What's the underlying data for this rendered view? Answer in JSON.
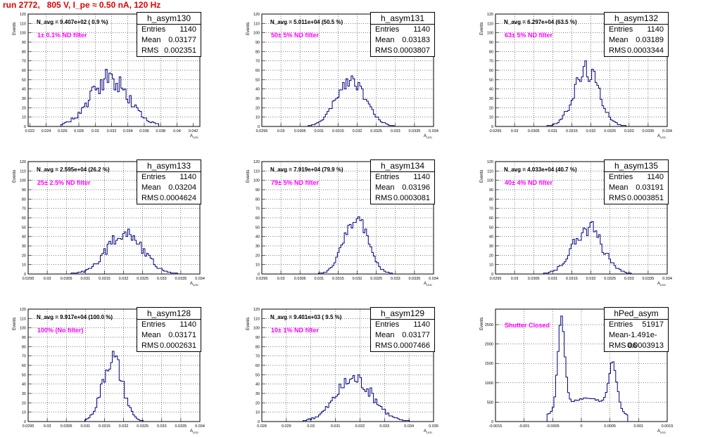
{
  "title": "run 2772,   805 V, I_pe ≈ 0.50 nA, 120 Hz",
  "colors": {
    "line": "#000080",
    "note": "#ff00ff",
    "title": "#e00000"
  },
  "chart_data": [
    {
      "type": "histogram",
      "name": "h_asym130",
      "stats": {
        "entries": "1140",
        "mean": "0.03177",
        "rms": "0.002351"
      },
      "n_avg": "N_avg = 9.407e+02 ( 0.9 %)",
      "note": "1± 0.1% ND filter",
      "ylabel": "Events",
      "xlabel": "A",
      "xlabel_sub": "LED",
      "xlim": [
        0.0218,
        0.0428
      ],
      "ylim": [
        0,
        120
      ],
      "xticks": [
        0.022,
        0.024,
        0.026,
        0.028,
        0.03,
        0.032,
        0.034,
        0.036,
        0.038,
        0.04,
        0.042
      ],
      "xtick_labels": [
        "0.022",
        "0.024",
        "0.026",
        "0.028",
        "0.03",
        "0.032",
        "0.034",
        "0.036",
        "0.038",
        "0.04",
        "0.042"
      ],
      "yticks": [
        0,
        10,
        20,
        30,
        40,
        50,
        60,
        70,
        80,
        90,
        100,
        110,
        120
      ],
      "profile": {
        "mean": 0.03177,
        "sigma": 0.002351,
        "peak": 50,
        "noise": 0.25,
        "seed": 130,
        "xmin": 0.0258,
        "xmax": 0.0378
      }
    },
    {
      "type": "histogram",
      "name": "h_asym131",
      "stats": {
        "entries": "1140",
        "mean": "0.03183",
        "rms": "0.0003807"
      },
      "n_avg": "N_avg = 5.011e+04 (50.5 %)",
      "note": "50± 5% ND filter",
      "ylabel": "Events",
      "xlabel": "A",
      "xlabel_sub": "LED",
      "xlim": [
        0.0295,
        0.034
      ],
      "ylim": [
        0,
        120
      ],
      "xticks": [
        0.0295,
        0.03,
        0.0305,
        0.031,
        0.0315,
        0.032,
        0.0325,
        0.033,
        0.0335,
        0.034
      ],
      "xtick_labels": [
        "0.0295",
        "0.03",
        "0.0305",
        "0.031",
        "0.0315",
        "0.032",
        "0.0325",
        "0.033",
        "0.0335",
        "0.034"
      ],
      "yticks": [
        0,
        10,
        20,
        30,
        40,
        50,
        60,
        70,
        80,
        90,
        100,
        110,
        120
      ],
      "profile": {
        "mean": 0.03183,
        "sigma": 0.00038,
        "peak": 50,
        "noise": 0.15,
        "seed": 131,
        "xmin": 0.0307,
        "xmax": 0.0331
      }
    },
    {
      "type": "histogram",
      "name": "h_asym132",
      "stats": {
        "entries": "1140",
        "mean": "0.03189",
        "rms": "0.0003344"
      },
      "n_avg": "N_avg = 6.297e+04 (63.5 %)",
      "note": "63± 5% ND filter",
      "ylabel": "Events",
      "xlabel": "A",
      "xlabel_sub": "LED",
      "xlim": [
        0.0295,
        0.034
      ],
      "ylim": [
        0,
        120
      ],
      "xticks": [
        0.0295,
        0.03,
        0.0305,
        0.031,
        0.0315,
        0.032,
        0.0325,
        0.033,
        0.0335,
        0.034
      ],
      "xtick_labels": [
        "0.0295",
        "0.03",
        "0.0305",
        "0.031",
        "0.0315",
        "0.032",
        "0.0325",
        "0.033",
        "0.0335",
        "0.034"
      ],
      "yticks": [
        0,
        10,
        20,
        30,
        40,
        50,
        60,
        70,
        80,
        90,
        100,
        110,
        120
      ],
      "profile": {
        "mean": 0.03189,
        "sigma": 0.00033,
        "peak": 60,
        "noise": 0.2,
        "seed": 132,
        "xmin": 0.0307,
        "xmax": 0.033
      }
    },
    {
      "type": "histogram",
      "name": "h_asym133",
      "stats": {
        "entries": "1140",
        "mean": "0.03204",
        "rms": "0.0004624"
      },
      "n_avg": "N_avg = 2.595e+04 (26.2 %)",
      "note": "25± 2.5% ND filter",
      "ylabel": "Events",
      "xlabel": "A",
      "xlabel_sub": "LED",
      "xlim": [
        0.0295,
        0.034
      ],
      "ylim": [
        0,
        120
      ],
      "xticks": [
        0.0295,
        0.03,
        0.0305,
        0.031,
        0.0315,
        0.032,
        0.0325,
        0.033,
        0.0335,
        0.034
      ],
      "xtick_labels": [
        "0.0295",
        "0.03",
        "0.0305",
        "0.031",
        "0.0315",
        "0.032",
        "0.0325",
        "0.033",
        "0.0335",
        "0.034"
      ],
      "yticks": [
        0,
        10,
        20,
        30,
        40,
        50,
        60,
        70,
        80,
        90,
        100,
        110,
        120
      ],
      "profile": {
        "mean": 0.03204,
        "sigma": 0.00046,
        "peak": 45,
        "noise": 0.2,
        "seed": 133,
        "xmin": 0.0304,
        "xmax": 0.0335
      }
    },
    {
      "type": "histogram",
      "name": "h_asym134",
      "stats": {
        "entries": "1140",
        "mean": "0.03196",
        "rms": "0.0003081"
      },
      "n_avg": "N_avg = 7.919e+04 (79.9 %)",
      "note": "79± 5% ND filter",
      "ylabel": "Events",
      "xlabel": "A",
      "xlabel_sub": "LED",
      "xlim": [
        0.0295,
        0.034
      ],
      "ylim": [
        0,
        120
      ],
      "xticks": [
        0.0295,
        0.03,
        0.0305,
        0.031,
        0.0315,
        0.032,
        0.0325,
        0.033,
        0.0335,
        0.034
      ],
      "xtick_labels": [
        "0.0295",
        "0.03",
        "0.0305",
        "0.031",
        "0.0315",
        "0.032",
        "0.0325",
        "0.033",
        "0.0335",
        "0.034"
      ],
      "yticks": [
        0,
        10,
        20,
        30,
        40,
        50,
        60,
        70,
        80,
        90,
        100,
        110,
        120
      ],
      "profile": {
        "mean": 0.03196,
        "sigma": 0.00031,
        "peak": 60,
        "noise": 0.15,
        "seed": 134,
        "xmin": 0.0308,
        "xmax": 0.0331
      }
    },
    {
      "type": "histogram",
      "name": "h_asym135",
      "stats": {
        "entries": "1140",
        "mean": "0.03191",
        "rms": "0.0003851"
      },
      "n_avg": "N_avg = 4.033e+04 (40.7 %)",
      "note": "40± 4% ND filter",
      "ylabel": "Events",
      "xlabel": "A",
      "xlabel_sub": "LED",
      "xlim": [
        0.0295,
        0.034
      ],
      "ylim": [
        0,
        120
      ],
      "xticks": [
        0.0295,
        0.03,
        0.0305,
        0.031,
        0.0315,
        0.032,
        0.0325,
        0.033,
        0.0335,
        0.034
      ],
      "xtick_labels": [
        "0.0295",
        "0.03",
        "0.0305",
        "0.031",
        "0.0315",
        "0.032",
        "0.0325",
        "0.033",
        "0.0335",
        "0.034"
      ],
      "yticks": [
        0,
        10,
        20,
        30,
        40,
        50,
        60,
        70,
        80,
        90,
        100,
        110,
        120
      ],
      "profile": {
        "mean": 0.03191,
        "sigma": 0.00038,
        "peak": 50,
        "noise": 0.2,
        "seed": 135,
        "xmin": 0.0307,
        "xmax": 0.0333
      }
    },
    {
      "type": "histogram",
      "name": "h_asym128",
      "stats": {
        "entries": "1140",
        "mean": "0.03171",
        "rms": "0.0002631"
      },
      "n_avg": "N_avg = 9.917e+04 (100.0 %)",
      "note": "100% (No filter)",
      "ylabel": "Events",
      "xlabel": "A",
      "xlabel_sub": "LED",
      "xlim": [
        0.0295,
        0.034
      ],
      "ylim": [
        0,
        120
      ],
      "xticks": [
        0.0295,
        0.03,
        0.0305,
        0.031,
        0.0315,
        0.032,
        0.0325,
        0.033,
        0.0335,
        0.034
      ],
      "xtick_labels": [
        "0.0295",
        "0.03",
        "0.0305",
        "0.031",
        "0.0315",
        "0.032",
        "0.0325",
        "0.033",
        "0.0335",
        "0.034"
      ],
      "yticks": [
        0,
        10,
        20,
        30,
        40,
        50,
        60,
        70,
        80,
        90,
        100,
        110,
        120
      ],
      "profile": {
        "mean": 0.03171,
        "sigma": 0.00026,
        "peak": 68,
        "noise": 0.18,
        "seed": 128,
        "xmin": 0.031,
        "xmax": 0.0326
      }
    },
    {
      "type": "histogram",
      "name": "h_asym129",
      "stats": {
        "entries": "1140",
        "mean": "0.03177",
        "rms": "0.0007466"
      },
      "n_avg": "N_avg = 9.401e+03 ( 9.5 %)",
      "note": "10± 1% ND filter",
      "ylabel": "Events",
      "xlabel": "A",
      "xlabel_sub": "LED",
      "xlim": [
        0.028,
        0.035
      ],
      "ylim": [
        0,
        120
      ],
      "xticks": [
        0.028,
        0.029,
        0.03,
        0.031,
        0.032,
        0.033,
        0.034,
        0.035
      ],
      "xtick_labels": [
        "0.028",
        "0.029",
        "0.03",
        "0.031",
        "0.032",
        "0.033",
        "0.034",
        "0.035"
      ],
      "yticks": [
        0,
        10,
        20,
        30,
        40,
        50,
        60,
        70,
        80,
        90,
        100,
        110,
        120
      ],
      "profile": {
        "mean": 0.03177,
        "sigma": 0.00075,
        "peak": 45,
        "noise": 0.2,
        "seed": 129,
        "xmin": 0.0297,
        "xmax": 0.0342
      }
    },
    {
      "type": "histogram",
      "name": "hPed_asym",
      "stats": {
        "entries": "51917",
        "mean": "-1.491e-06",
        "rms": "0.0003913"
      },
      "n_avg": "",
      "note": "Shutter Closed",
      "ylabel": "Events",
      "xlabel": "A",
      "xlabel_sub": "LED",
      "xlim": [
        -0.0015,
        0.0015
      ],
      "ylim": [
        0,
        2900
      ],
      "xticks": [
        -0.0015,
        -0.001,
        -0.0005,
        0,
        0.0005,
        0.001,
        0.0015
      ],
      "xtick_labels": [
        "-0.0015",
        "-0.001",
        "-0.0005",
        "0",
        "0.0005",
        "0.001",
        "0.0015"
      ],
      "yticks": [
        0,
        500,
        1000,
        1500,
        2000,
        2500
      ],
      "profile": {
        "peaks": [
          {
            "m": -0.00035,
            "s": 6e-05,
            "a": 2350
          },
          {
            "m": 0.00055,
            "s": 7e-05,
            "a": 1150
          },
          {
            "m": 0.0001,
            "s": 0.00045,
            "a": 600
          }
        ],
        "noise": 0.04,
        "seed": 999,
        "xmin": -0.0006,
        "xmax": 0.0008
      }
    }
  ]
}
